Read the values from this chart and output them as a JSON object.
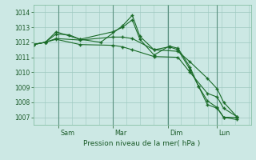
{
  "bg_color": "#cce8e4",
  "grid_color": "#9dc8c0",
  "line_color": "#1a6b28",
  "marker_color": "#1a6b28",
  "xlabel": "Pression niveau de la mer( hPa )",
  "ylim": [
    1006.5,
    1014.5
  ],
  "yticks": [
    1007,
    1008,
    1009,
    1010,
    1011,
    1012,
    1013,
    1014
  ],
  "x_day_labels": [
    [
      "Sam",
      0.115
    ],
    [
      "Mar",
      0.365
    ],
    [
      "Dim",
      0.62
    ],
    [
      "Lun",
      0.845
    ]
  ],
  "series": [
    {
      "x": [
        0.0,
        0.055,
        0.105,
        0.165,
        0.215,
        0.31,
        0.41,
        0.455,
        0.49,
        0.555,
        0.625,
        0.665,
        0.72,
        0.76,
        0.8,
        0.845,
        0.875,
        0.935
      ],
      "y": [
        1011.85,
        1012.0,
        1012.55,
        1012.5,
        1012.2,
        1012.0,
        1013.1,
        1013.8,
        1012.4,
        1011.5,
        1011.7,
        1011.5,
        1010.2,
        1009.05,
        1008.1,
        1007.65,
        1007.0,
        1007.0
      ]
    },
    {
      "x": [
        0.0,
        0.055,
        0.105,
        0.215,
        0.365,
        0.41,
        0.455,
        0.49,
        0.555,
        0.625,
        0.665,
        0.72,
        0.76,
        0.8,
        0.845,
        0.875,
        0.935
      ],
      "y": [
        1011.85,
        1012.0,
        1012.7,
        1012.2,
        1012.7,
        1013.0,
        1013.5,
        1012.2,
        1011.15,
        1011.75,
        1011.6,
        1010.35,
        1009.05,
        1007.85,
        1007.6,
        1007.0,
        1006.85
      ]
    },
    {
      "x": [
        0.0,
        0.055,
        0.105,
        0.215,
        0.365,
        0.41,
        0.455,
        0.555,
        0.665,
        0.72,
        0.8,
        0.845,
        0.875,
        0.935
      ],
      "y": [
        1011.85,
        1012.0,
        1012.2,
        1011.85,
        1011.8,
        1011.7,
        1011.5,
        1011.05,
        1011.0,
        1010.0,
        1008.6,
        1008.35,
        1007.6,
        1007.05
      ]
    },
    {
      "x": [
        0.0,
        0.055,
        0.105,
        0.215,
        0.365,
        0.41,
        0.455,
        0.555,
        0.665,
        0.72,
        0.8,
        0.845,
        0.875,
        0.935
      ],
      "y": [
        1011.85,
        1012.0,
        1012.25,
        1012.15,
        1012.35,
        1012.35,
        1012.25,
        1011.5,
        1011.4,
        1010.7,
        1009.6,
        1008.9,
        1008.0,
        1007.05
      ]
    }
  ]
}
